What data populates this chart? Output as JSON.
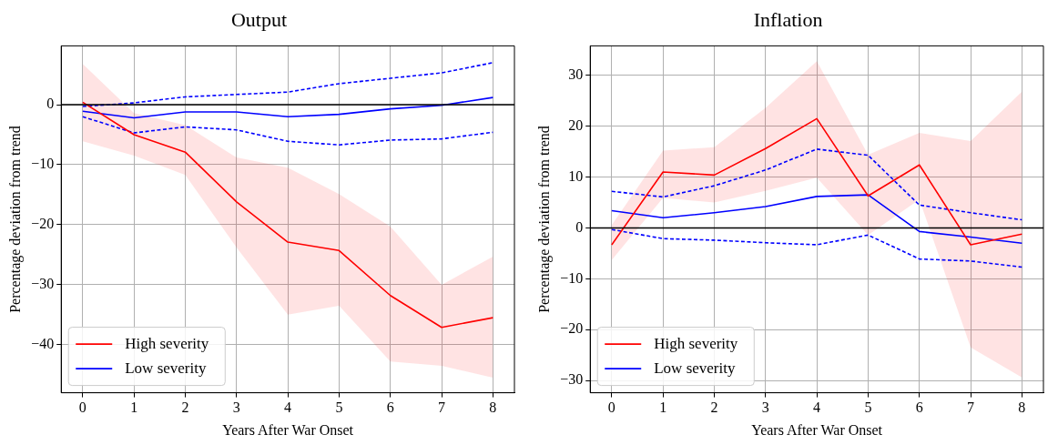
{
  "chart_data": [
    {
      "type": "line",
      "title": "Output",
      "xlabel": "Years After War Onset",
      "ylabel": "Percentage deviation from trend",
      "x": [
        0,
        1,
        2,
        3,
        4,
        5,
        6,
        7,
        8
      ],
      "xlim": [
        -0.42,
        8.42
      ],
      "xticks": [
        0,
        1,
        2,
        3,
        4,
        5,
        6,
        7,
        8
      ],
      "ylim": [
        -48,
        9.8
      ],
      "yticks": [
        -40,
        -30,
        -20,
        -10,
        0
      ],
      "grid": true,
      "legend": "bottom left",
      "ref_lines": [
        {
          "axis": "y",
          "value": 0,
          "color": "#000000"
        }
      ],
      "series": [
        {
          "name": "High severity",
          "color": "#ff0000",
          "line_style": "solid",
          "values": [
            0.4,
            -5,
            -7.9,
            -16.2,
            -22.9,
            -24.3,
            -31.8,
            -37.1,
            -35.5
          ],
          "lower": [
            -6.1,
            -8.5,
            -11.7,
            -23.8,
            -35,
            -33.5,
            -42.8,
            -43.5,
            -45.5
          ],
          "upper": [
            6.8,
            -1.4,
            -3.4,
            -8.8,
            -10.5,
            -14.9,
            -20.3,
            -30,
            -25.3
          ]
        },
        {
          "name": "Low severity",
          "color": "#0000ff",
          "line_style": "solid",
          "values": [
            -1.1,
            -2.2,
            -1.2,
            -1.2,
            -2,
            -1.6,
            -0.7,
            -0.1,
            1.2
          ]
        },
        {
          "color": "#0000ff",
          "line_style": "dashed",
          "values": [
            -0.3,
            0.3,
            1.3,
            1.7,
            2.1,
            3.5,
            4.4,
            5.3,
            7.0
          ]
        },
        {
          "color": "#0000ff",
          "line_style": "dashed",
          "values": [
            -2.0,
            -4.7,
            -3.7,
            -4.2,
            -6.1,
            -6.7,
            -5.9,
            -5.7,
            -4.6
          ]
        }
      ]
    },
    {
      "type": "line",
      "title": "Inflation",
      "xlabel": "Years After War Onset",
      "ylabel": "Percentage deviation from trend",
      "x": [
        0,
        1,
        2,
        3,
        4,
        5,
        6,
        7,
        8
      ],
      "xlim": [
        -0.42,
        8.42
      ],
      "xticks": [
        0,
        1,
        2,
        3,
        4,
        5,
        6,
        7,
        8
      ],
      "ylim": [
        -32.4,
        35.8
      ],
      "yticks": [
        -30,
        -20,
        -10,
        0,
        10,
        20,
        30
      ],
      "grid": true,
      "legend": "bottom left",
      "ref_lines": [
        {
          "axis": "y",
          "value": 0,
          "color": "#000000"
        }
      ],
      "series": [
        {
          "name": "High severity",
          "color": "#ff0000",
          "line_style": "solid",
          "values": [
            -3.3,
            11,
            10.4,
            15.6,
            21.5,
            6.3,
            12.4,
            -3.3,
            -1.2
          ],
          "lower": [
            -6.3,
            5.9,
            5,
            7.3,
            9.9,
            -1.4,
            5.6,
            -23.5,
            -29.4
          ],
          "upper": [
            0.6,
            15.2,
            15.9,
            23.6,
            32.8,
            14.4,
            18.7,
            17.1,
            26.8
          ]
        },
        {
          "name": "Low severity",
          "color": "#0000ff",
          "line_style": "solid",
          "values": [
            3.4,
            2.0,
            3.0,
            4.2,
            6.2,
            6.5,
            -0.7,
            -1.8,
            -3.0
          ]
        },
        {
          "color": "#0000ff",
          "line_style": "dashed",
          "values": [
            7.2,
            6.1,
            8.3,
            11.4,
            15.5,
            14.3,
            4.5,
            3.0,
            1.6
          ]
        },
        {
          "color": "#0000ff",
          "line_style": "dashed",
          "values": [
            -0.3,
            -2.1,
            -2.4,
            -2.9,
            -3.3,
            -1.4,
            -6.1,
            -6.5,
            -7.7
          ]
        }
      ]
    }
  ]
}
